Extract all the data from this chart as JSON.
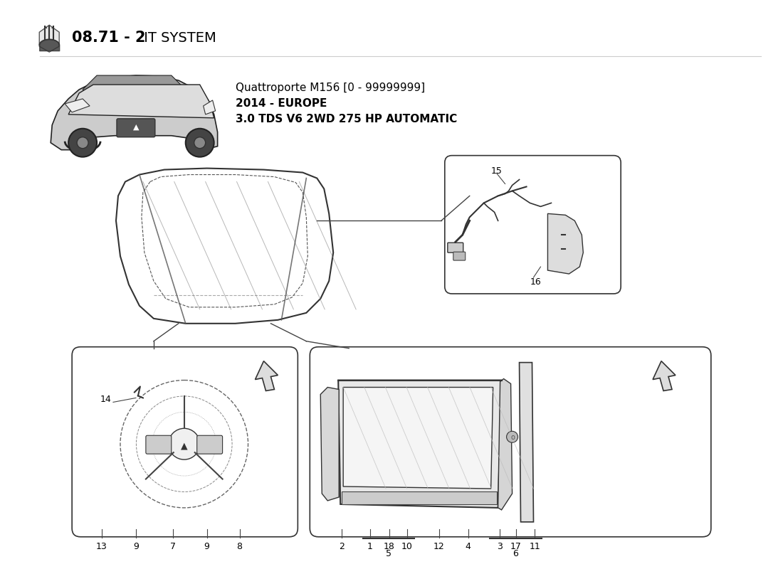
{
  "title_number": "08.71 - 2",
  "title_bold": "08.71 - 2",
  "title_text": " IT SYSTEM",
  "car_model_line1": "Quattroporte M156 [0 - 99999999]",
  "car_model_line2": "2014 - EUROPE",
  "car_model_line3": "3.0 TDS V6 2WD 275 HP AUTOMATIC",
  "bg_color": "#FFFFFF",
  "box_edge_color": "#333333",
  "text_color": "#000000",
  "part_numbers_bottom_left": [
    "13",
    "9",
    "7",
    "9",
    "8"
  ],
  "part_number_14": "14",
  "part_numbers_bottom_right": [
    "2",
    "1",
    "18",
    "10",
    "12",
    "4",
    "3",
    "17",
    "11"
  ],
  "part_number_15": "15",
  "part_number_16": "16",
  "group5_label": "5",
  "group6_label": "6"
}
